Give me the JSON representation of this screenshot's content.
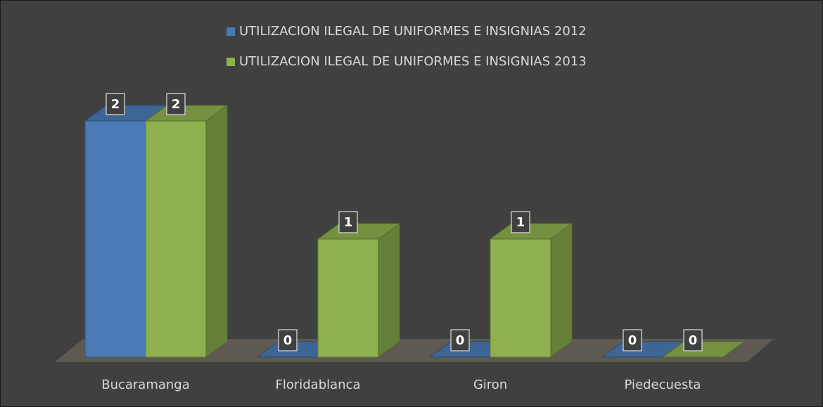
{
  "chart_data": {
    "type": "bar3d",
    "categories": [
      "Bucaramanga",
      "Floridablanca",
      "Giron",
      "Piedecuesta"
    ],
    "series": [
      {
        "name": "UTILIZACION ILEGAL DE UNIFORMES E INSIGNIAS 2012",
        "color": "#4a7bb7",
        "values": [
          2,
          0,
          0,
          0
        ]
      },
      {
        "name": "UTILIZACION ILEGAL DE UNIFORMES E INSIGNIAS 2013",
        "color": "#8eb04e",
        "values": [
          2,
          1,
          1,
          0
        ]
      }
    ],
    "legend": "top"
  }
}
